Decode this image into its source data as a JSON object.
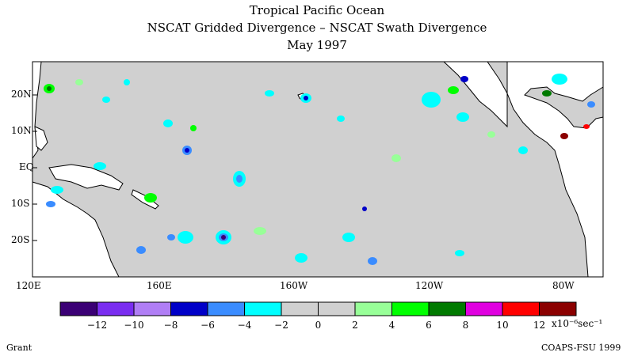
{
  "title_lines": [
    "Tropical Pacific Ocean",
    "NSCAT Gridded Divergence – NSCAT Swath Divergence",
    "May 1997"
  ],
  "lat_labels": [
    "20N",
    "10N",
    "EQ",
    "10S",
    "20S"
  ],
  "lon_labels": [
    "120E",
    "160E",
    "160W",
    "120W",
    "80W"
  ],
  "colorbar": {
    "colors": [
      "#3b0075",
      "#7a2df0",
      "#b07ef5",
      "#0000c8",
      "#3a8cff",
      "#00ffff",
      "#d0d0d0",
      "#d0d0d0",
      "#98ff98",
      "#00ff00",
      "#007a00",
      "#e000e0",
      "#ff0000",
      "#8b0000"
    ],
    "tick_labels": [
      "−12",
      "−10",
      "−8",
      "−6",
      "−4",
      "−2",
      "0",
      "2",
      "4",
      "6",
      "8",
      "10",
      "12"
    ],
    "units": "x10⁻⁶sec⁻¹"
  },
  "credits": {
    "left": "Grant",
    "right": "COAPS-FSU 1999"
  },
  "map": {
    "ocean_color": "#d0d0d0",
    "land_color": "#ffffff"
  }
}
